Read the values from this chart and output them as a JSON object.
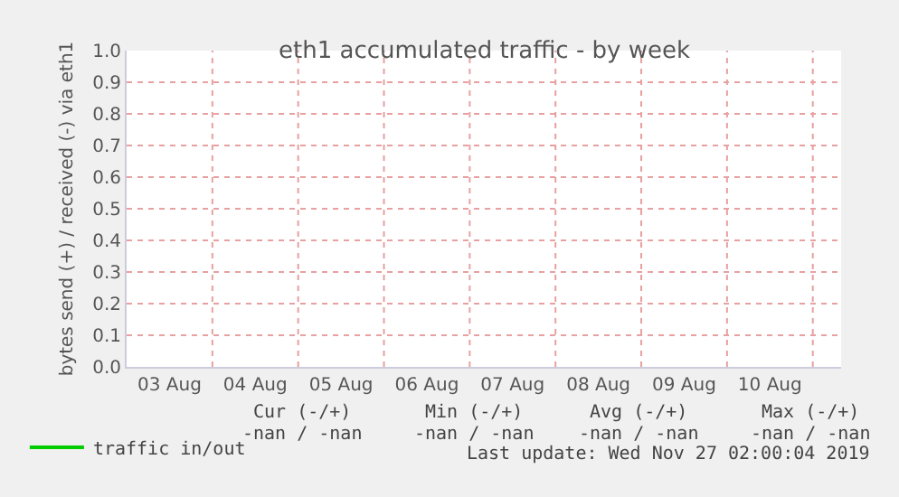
{
  "chart_data": {
    "type": "line",
    "title": "eth1 accumulated traffic - by week",
    "ylabel": "bytes send (+) / received (-) via eth1",
    "categories": [
      "03 Aug",
      "04 Aug",
      "05 Aug",
      "06 Aug",
      "07 Aug",
      "08 Aug",
      "09 Aug",
      "10 Aug"
    ],
    "series": [
      {
        "name": "traffic in/out",
        "color": "#00cc00",
        "values": [
          null,
          null,
          null,
          null,
          null,
          null,
          null,
          null
        ]
      }
    ],
    "ylim": [
      0,
      1
    ],
    "yticks": [
      {
        "value": 0,
        "label": "0.0"
      },
      0.1,
      0.2,
      0.3,
      0.4,
      0.5,
      0.6,
      0.7,
      0.8,
      0.9,
      {
        "value": 1,
        "label": "1.0"
      }
    ],
    "grid": true,
    "legend": "bottom left",
    "annotations": [
      "Cur (-/+)",
      "Min (-/+)",
      "Avg (-/+)",
      "Max (-/+)",
      "-nan / -nan",
      "-nan / -nan",
      "-nan / -nan",
      "-nan / -nan",
      "Last update: Wed Nov 27 02:00:04 2019"
    ]
  }
}
